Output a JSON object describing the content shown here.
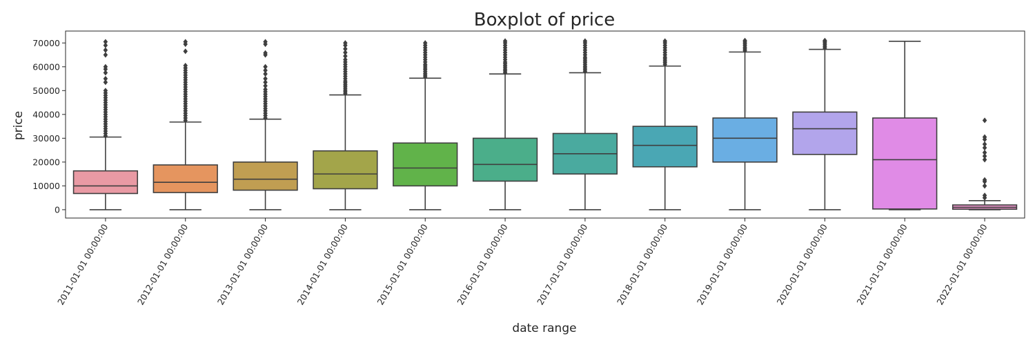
{
  "chart_data": {
    "type": "boxplot",
    "title": "Boxplot of price",
    "xlabel": "date range",
    "ylabel": "price",
    "ylim": [
      -3500,
      75000
    ],
    "yticks": [
      0,
      10000,
      20000,
      30000,
      40000,
      50000,
      60000,
      70000
    ],
    "ytick_labels": [
      "0",
      "10000",
      "20000",
      "30000",
      "40000",
      "50000",
      "60000",
      "70000"
    ],
    "grid": false,
    "categories": [
      "2011-01-01 00:00:00",
      "2012-01-01 00:00:00",
      "2013-01-01 00:00:00",
      "2014-01-01 00:00:00",
      "2015-01-01 00:00:00",
      "2016-01-01 00:00:00",
      "2017-01-01 00:00:00",
      "2018-01-01 00:00:00",
      "2019-01-01 00:00:00",
      "2020-01-01 00:00:00",
      "2021-01-01 00:00:00",
      "2022-01-01 00:00:00"
    ],
    "boxes": [
      {
        "color": "#e99aa4",
        "whisker_low": 0,
        "q1": 6800,
        "median": 10000,
        "q3": 16300,
        "whisker_high": 30500,
        "outliers": [
          31000,
          32000,
          33000,
          34000,
          35000,
          36000,
          37000,
          38000,
          39000,
          40000,
          41000,
          42000,
          43000,
          44000,
          45000,
          46000,
          47000,
          48000,
          49000,
          50000,
          53500,
          55000,
          57500,
          59000,
          60000,
          65000,
          67000,
          69000,
          70500
        ]
      },
      {
        "color": "#e5955f",
        "whisker_low": 0,
        "q1": 7200,
        "median": 11500,
        "q3": 18800,
        "whisker_high": 36800,
        "outliers": [
          37500,
          38500,
          39500,
          40500,
          41500,
          42500,
          43500,
          44500,
          45500,
          46500,
          47500,
          48500,
          49500,
          50500,
          51500,
          52500,
          53500,
          54500,
          55500,
          56500,
          57500,
          58500,
          59500,
          60500,
          66500,
          69500,
          70500
        ]
      },
      {
        "color": "#c09e52",
        "whisker_low": 0,
        "q1": 8200,
        "median": 12800,
        "q3": 20000,
        "whisker_high": 38000,
        "outliers": [
          38500,
          39500,
          40500,
          41500,
          42500,
          43500,
          44500,
          45500,
          46500,
          47500,
          48500,
          49500,
          50500,
          52000,
          53500,
          55000,
          57000,
          58500,
          60000,
          65000,
          65800,
          69500,
          70500
        ]
      },
      {
        "color": "#a3a54a",
        "whisker_low": 0,
        "q1": 8800,
        "median": 15000,
        "q3": 24700,
        "whisker_high": 48200,
        "outliers": [
          48800,
          49500,
          50200,
          51000,
          51800,
          52500,
          53300,
          54000,
          55000,
          56000,
          57000,
          58000,
          59000,
          60000,
          61000,
          62000,
          63000,
          64500,
          66000,
          67500,
          69000,
          70000
        ]
      },
      {
        "color": "#61b34a",
        "whisker_low": 0,
        "q1": 10000,
        "median": 17500,
        "q3": 28000,
        "whisker_high": 55200,
        "outliers": [
          55800,
          56500,
          57200,
          58000,
          58800,
          59500,
          60300,
          61000,
          62000,
          63000,
          64000,
          65000,
          66000,
          67000,
          68000,
          69000,
          70000
        ]
      },
      {
        "color": "#4bae8a",
        "whisker_low": 0,
        "q1": 12000,
        "median": 19000,
        "q3": 30000,
        "whisker_high": 57000,
        "outliers": [
          57600,
          58300,
          59000,
          59800,
          60500,
          61300,
          62000,
          63000,
          64000,
          65000,
          66000,
          67000,
          68000,
          69000,
          70000,
          70800
        ]
      },
      {
        "color": "#4aaa9f",
        "whisker_low": 0,
        "q1": 15000,
        "median": 23500,
        "q3": 32000,
        "whisker_high": 57500,
        "outliers": [
          58100,
          58800,
          59500,
          60200,
          61000,
          61800,
          62500,
          63300,
          64000,
          65000,
          66000,
          67000,
          68000,
          69000,
          70000,
          70800
        ]
      },
      {
        "color": "#4aa7b4",
        "whisker_low": 0,
        "q1": 18000,
        "median": 27000,
        "q3": 35000,
        "whisker_high": 60300,
        "outliers": [
          61000,
          61800,
          62500,
          63300,
          64000,
          65000,
          66000,
          67000,
          68000,
          69000,
          70000,
          70800
        ]
      },
      {
        "color": "#6aaee3",
        "whisker_low": 0,
        "q1": 20000,
        "median": 30000,
        "q3": 38500,
        "whisker_high": 66200,
        "outliers": [
          66800,
          67500,
          68200,
          69000,
          69700,
          70400,
          71000
        ]
      },
      {
        "color": "#b2a5eb",
        "whisker_low": 0,
        "q1": 23200,
        "median": 34000,
        "q3": 41000,
        "whisker_high": 67300,
        "outliers": [
          67900,
          68600,
          69300,
          70000,
          70600,
          71000
        ]
      },
      {
        "color": "#e08be6",
        "whisker_low": 0,
        "q1": 300,
        "median": 21000,
        "q3": 38500,
        "whisker_high": 70700,
        "outliers": []
      },
      {
        "color": "#e993c9",
        "whisker_low": 0,
        "q1": 200,
        "median": 1000,
        "q3": 2000,
        "whisker_high": 3800,
        "outliers": [
          5000,
          6000,
          10000,
          11800,
          12500,
          21000,
          22500,
          24000,
          26000,
          27500,
          29500,
          30500,
          37500
        ]
      }
    ]
  }
}
